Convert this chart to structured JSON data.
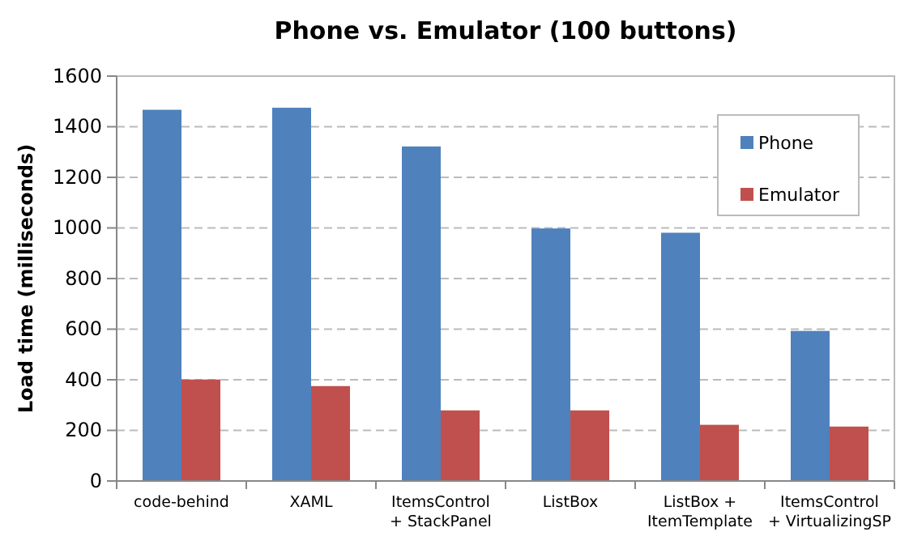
{
  "chart_data": {
    "type": "bar",
    "title": "Phone vs. Emulator (100 buttons)",
    "ylabel": "Load time (milliseconds)",
    "categories": [
      "code-behind",
      "XAML",
      "ItemsControl\n+ StackPanel",
      "ListBox",
      "ListBox +\nItemTemplate",
      "ItemsControl\n+ VirtualizingSP"
    ],
    "series": [
      {
        "name": "Phone",
        "color": "#4f81bd",
        "values": [
          1467,
          1475,
          1322,
          998,
          981,
          593
        ]
      },
      {
        "name": "Emulator",
        "color": "#c0504d",
        "values": [
          401,
          375,
          279,
          279,
          222,
          215
        ]
      }
    ],
    "ylim": [
      0,
      1600
    ],
    "yticks": [
      0,
      200,
      400,
      600,
      800,
      1000,
      1200,
      1400,
      1600
    ],
    "grid": "y",
    "legend": "top right"
  }
}
